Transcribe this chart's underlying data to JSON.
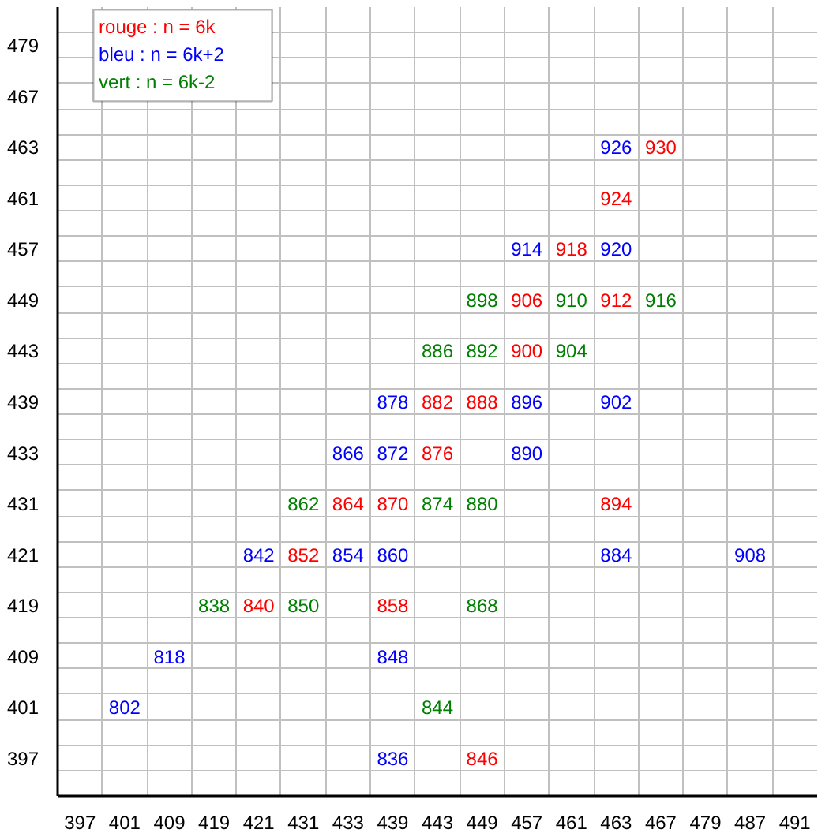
{
  "chart_data": {
    "type": "heatmap",
    "grid": true,
    "data_labels": true,
    "categories": [
      "397",
      "401",
      "409",
      "419",
      "421",
      "431",
      "433",
      "439",
      "443",
      "449",
      "457",
      "461",
      "463",
      "467",
      "479",
      "487",
      "491"
    ],
    "y_categories": [
      "479",
      "467",
      "463",
      "461",
      "457",
      "449",
      "443",
      "439",
      "433",
      "431",
      "421",
      "419",
      "409",
      "401",
      "397"
    ],
    "annotations": [
      "rouge : n = 6k",
      "bleu   : n = 6k+2",
      "vert    : n = 6k-2"
    ],
    "cells": [
      [
        null,
        null,
        null,
        null,
        null,
        null,
        null,
        null,
        null,
        null,
        null,
        null,
        null,
        null,
        null,
        null,
        null
      ],
      [
        null,
        null,
        null,
        null,
        null,
        null,
        null,
        null,
        null,
        null,
        null,
        null,
        null,
        null,
        null,
        null,
        null
      ],
      [
        null,
        null,
        null,
        null,
        null,
        null,
        null,
        null,
        null,
        null,
        null,
        null,
        926,
        930,
        null,
        null,
        null
      ],
      [
        null,
        null,
        null,
        null,
        null,
        null,
        null,
        null,
        null,
        null,
        null,
        null,
        924,
        null,
        null,
        null,
        null
      ],
      [
        null,
        null,
        null,
        null,
        null,
        null,
        null,
        null,
        null,
        null,
        914,
        918,
        920,
        null,
        null,
        null,
        null
      ],
      [
        null,
        null,
        null,
        null,
        null,
        null,
        null,
        null,
        null,
        898,
        906,
        910,
        912,
        916,
        null,
        null,
        null
      ],
      [
        null,
        null,
        null,
        null,
        null,
        null,
        null,
        null,
        886,
        892,
        900,
        904,
        null,
        null,
        null,
        null,
        null
      ],
      [
        null,
        null,
        null,
        null,
        null,
        null,
        null,
        878,
        882,
        888,
        896,
        null,
        902,
        null,
        null,
        null,
        null
      ],
      [
        null,
        null,
        null,
        null,
        null,
        null,
        866,
        872,
        876,
        null,
        890,
        null,
        null,
        null,
        null,
        null,
        null
      ],
      [
        null,
        null,
        null,
        null,
        null,
        862,
        864,
        870,
        874,
        880,
        null,
        null,
        894,
        null,
        null,
        null,
        null
      ],
      [
        null,
        null,
        null,
        null,
        842,
        852,
        854,
        860,
        null,
        null,
        null,
        null,
        884,
        null,
        null,
        908,
        null
      ],
      [
        null,
        null,
        null,
        838,
        840,
        850,
        null,
        858,
        null,
        868,
        null,
        null,
        null,
        null,
        null,
        null,
        null
      ],
      [
        null,
        null,
        818,
        null,
        null,
        null,
        null,
        848,
        null,
        null,
        null,
        null,
        null,
        null,
        null,
        null,
        null
      ],
      [
        null,
        802,
        null,
        null,
        null,
        null,
        null,
        null,
        844,
        null,
        null,
        null,
        null,
        null,
        null,
        null,
        null
      ],
      [
        null,
        null,
        null,
        null,
        null,
        null,
        null,
        836,
        null,
        846,
        null,
        null,
        null,
        null,
        null,
        null,
        null
      ]
    ],
    "colors": [
      "#0000ff",
      "#ff0000",
      "#ff0000",
      "#0000ff",
      "#ff0000",
      "#0000ff",
      "#008000",
      "#ff0000",
      "#008000",
      "#ff0000",
      "#008000",
      "#008000",
      "#008000",
      "#ff0000",
      "#008000",
      "#0000ff",
      "#ff0000",
      "#ff0000",
      "#0000ff",
      "#0000ff",
      "#0000ff",
      "#0000ff",
      "#ff0000",
      "#0000ff",
      "#008000",
      "#ff0000",
      "#ff0000",
      "#008000",
      "#008000",
      "#ff0000",
      "#0000ff",
      "#ff0000",
      "#0000ff",
      "#0000ff",
      "#0000ff",
      "#0000ff",
      "#008000",
      "#ff0000",
      "#008000",
      "#ff0000",
      "#008000",
      "#0000ff",
      "#0000ff",
      "#0000ff",
      "#008000",
      "#0000ff",
      "#ff0000"
    ]
  }
}
